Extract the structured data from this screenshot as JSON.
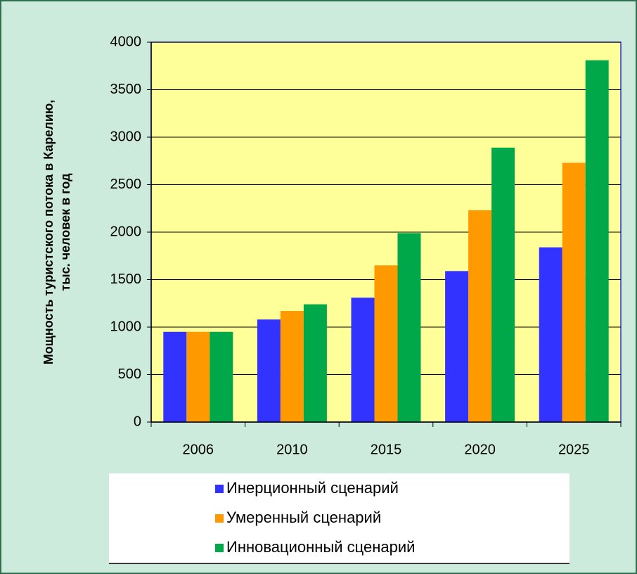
{
  "chart_data": {
    "type": "bar",
    "ylabel": [
      "Мощность туристского потока в Карелию,",
      "тыс. человек в год"
    ],
    "categories": [
      "2006",
      "2010",
      "2015",
      "2020",
      "2025"
    ],
    "series": [
      {
        "name": "Инерционный сценарий",
        "color": "#3333ff",
        "values": [
          950,
          1080,
          1310,
          1590,
          1840
        ]
      },
      {
        "name": "Умеренный сценарий",
        "color": "#ff9900",
        "values": [
          950,
          1170,
          1650,
          2230,
          2730
        ]
      },
      {
        "name": "Инновационный сценарий",
        "color": "#00a84a",
        "values": [
          950,
          1240,
          1990,
          2890,
          3810
        ]
      }
    ],
    "ylim": [
      0,
      4000
    ],
    "yticks": [
      0,
      500,
      1000,
      1500,
      2000,
      2500,
      3000,
      3500,
      4000
    ],
    "grid": true,
    "legend": "bottom"
  }
}
